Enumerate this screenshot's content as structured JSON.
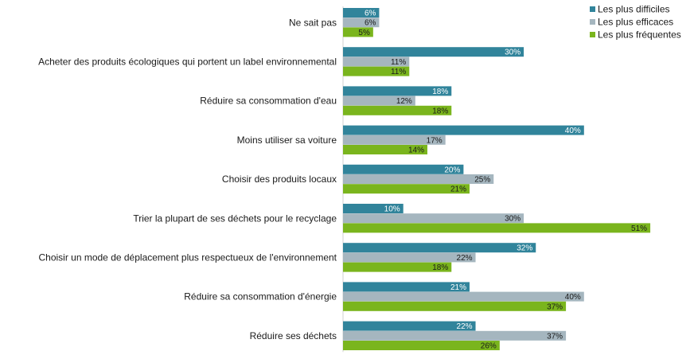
{
  "chart_data": {
    "type": "bar",
    "orientation": "horizontal",
    "categories": [
      "Ne sait pas",
      "Acheter des produits écologiques qui portent un label environnemental",
      "Réduire sa consommation d'eau",
      "Moins utiliser sa voiture",
      "Choisir des produits locaux",
      "Trier la plupart de ses déchets pour le recyclage",
      "Choisir un mode de déplacement plus respectueux de l'environnement",
      "Réduire sa consommation d'énergie",
      "Réduire ses déchets"
    ],
    "series": [
      {
        "name": "Les plus difficiles",
        "color": "#31849b",
        "label_color": "#ffffff",
        "values": [
          6,
          30,
          18,
          40,
          20,
          10,
          32,
          21,
          22
        ],
        "labels": [
          "6%",
          "30%",
          "18%",
          "40%",
          "20%",
          "10%",
          "32%",
          "21%",
          "22%"
        ]
      },
      {
        "name": "Les plus efficaces",
        "color": "#a5b6bf",
        "label_color": "#1a1a1a",
        "values": [
          6,
          11,
          12,
          17,
          25,
          30,
          22,
          40,
          37
        ],
        "labels": [
          "6%",
          "11%",
          "12%",
          "17%",
          "25%",
          "30%",
          "22%",
          "40%",
          "37%"
        ]
      },
      {
        "name": "Les plus fréquentes",
        "color": "#7ab51d",
        "label_color": "#1a1a1a",
        "values": [
          5,
          11,
          18,
          14,
          21,
          51,
          18,
          37,
          26
        ],
        "labels": [
          "5%",
          "11%",
          "18%",
          "14%",
          "21%",
          "51%",
          "18%",
          "37%",
          "26%"
        ]
      }
    ],
    "xlim": [
      0,
      51
    ],
    "grid": false,
    "legend_position": "top-right"
  }
}
